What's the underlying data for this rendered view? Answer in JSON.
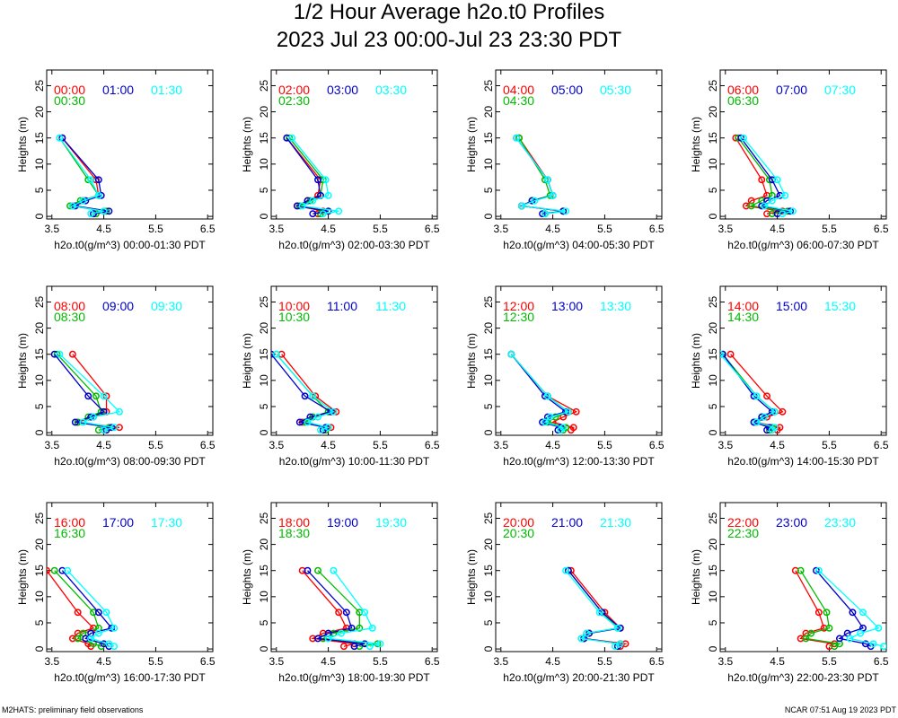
{
  "title": "1/2 Hour Average h2o.t0 Profiles",
  "subtitle": "2023 Jul 23 00:00-Jul 23 23:30 PDT",
  "footer_left": "M2HATS: preliminary field observations",
  "footer_right": "NCAR 07:51 Aug 19 2023 PDT",
  "colors": {
    "a": "#ff0000",
    "b": "#0000cc",
    "c": "#00ffff",
    "d": "#00bb00"
  },
  "chart_data": [
    {
      "type": "line",
      "xlabel": "h2o.t0(g/m^3) 00:00-01:30 PDT",
      "ylabel": "Heights (m)",
      "xlim": [
        3.4,
        6.6
      ],
      "ylim": [
        -0.5,
        28
      ],
      "xticks": [
        "3.5",
        "4.5",
        "5.5",
        "6.5"
      ],
      "yticks": [
        "0",
        "5",
        "10",
        "15",
        "20",
        "25"
      ],
      "heights": [
        0.5,
        1,
        2,
        3,
        4,
        7,
        15
      ],
      "series": [
        {
          "name": "00:00",
          "color": "#ff0000",
          "values": [
            4.3,
            4.5,
            3.9,
            4.1,
            4.4,
            4.35,
            3.7
          ]
        },
        {
          "name": "00:30",
          "color": "#00bb00",
          "values": [
            4.35,
            4.55,
            3.85,
            4.05,
            4.4,
            4.2,
            3.65
          ]
        },
        {
          "name": "01:00",
          "color": "#0000cc",
          "values": [
            4.3,
            4.6,
            3.95,
            4.15,
            4.45,
            4.4,
            3.7
          ]
        },
        {
          "name": "01:30",
          "color": "#00ffff",
          "values": [
            4.25,
            4.5,
            3.9,
            4.1,
            4.4,
            4.25,
            3.65
          ]
        }
      ]
    },
    {
      "type": "line",
      "xlabel": "h2o.t0(g/m^3) 02:00-03:30 PDT",
      "ylabel": "Heights (m)",
      "xlim": [
        3.4,
        6.6
      ],
      "ylim": [
        -0.5,
        28
      ],
      "xticks": [
        "3.5",
        "4.5",
        "5.5",
        "6.5"
      ],
      "yticks": [
        "0",
        "5",
        "10",
        "15",
        "20",
        "25"
      ],
      "heights": [
        0.5,
        1,
        2,
        3,
        4,
        7,
        15
      ],
      "series": [
        {
          "name": "02:00",
          "color": "#ff0000",
          "values": [
            4.3,
            4.4,
            3.9,
            4.1,
            4.3,
            4.35,
            3.7
          ]
        },
        {
          "name": "02:30",
          "color": "#00bb00",
          "values": [
            4.35,
            4.5,
            3.95,
            4.15,
            4.35,
            4.4,
            3.75
          ]
        },
        {
          "name": "03:00",
          "color": "#0000cc",
          "values": [
            4.2,
            4.5,
            3.9,
            4.1,
            4.35,
            4.3,
            3.7
          ]
        },
        {
          "name": "03:30",
          "color": "#00ffff",
          "values": [
            4.4,
            4.7,
            4.0,
            4.2,
            4.5,
            4.45,
            3.8
          ]
        }
      ]
    },
    {
      "type": "line",
      "xlabel": "h2o.t0(g/m^3) 04:00-05:30 PDT",
      "ylabel": "Heights (m)",
      "xlim": [
        3.4,
        6.6
      ],
      "ylim": [
        -0.5,
        28
      ],
      "xticks": [
        "3.5",
        "4.5",
        "5.5",
        "6.5"
      ],
      "yticks": [
        "0",
        "5",
        "10",
        "15",
        "20",
        "25"
      ],
      "heights": [
        0.5,
        1,
        2,
        3,
        4,
        7,
        15
      ],
      "series": [
        {
          "name": "04:00",
          "color": "#ff0000",
          "values": [
            4.35,
            4.7,
            3.9,
            4.1,
            4.5,
            4.4,
            3.85
          ]
        },
        {
          "name": "04:30",
          "color": "#00bb00",
          "values": [
            4.35,
            4.7,
            3.9,
            4.1,
            4.45,
            4.35,
            3.85
          ]
        },
        {
          "name": "05:00",
          "color": "#0000cc",
          "values": [
            4.3,
            4.7,
            3.9,
            4.1,
            4.5,
            4.4,
            3.8
          ]
        },
        {
          "name": "05:30",
          "color": "#00ffff",
          "values": [
            4.35,
            4.75,
            3.9,
            4.15,
            4.5,
            4.4,
            3.8
          ]
        }
      ]
    },
    {
      "type": "line",
      "xlabel": "h2o.t0(g/m^3) 06:00-07:30 PDT",
      "ylabel": "Heights (m)",
      "xlim": [
        3.4,
        6.6
      ],
      "ylim": [
        -0.5,
        28
      ],
      "xticks": [
        "3.5",
        "4.5",
        "5.5",
        "6.5"
      ],
      "yticks": [
        "0",
        "5",
        "10",
        "15",
        "20",
        "25"
      ],
      "heights": [
        0.5,
        1,
        2,
        3,
        4,
        7,
        15
      ],
      "series": [
        {
          "name": "06:00",
          "color": "#ff0000",
          "values": [
            4.3,
            4.6,
            3.9,
            4.0,
            4.3,
            4.2,
            3.7
          ]
        },
        {
          "name": "06:30",
          "color": "#00bb00",
          "values": [
            4.4,
            4.7,
            4.0,
            4.2,
            4.4,
            4.35,
            3.75
          ]
        },
        {
          "name": "07:00",
          "color": "#0000cc",
          "values": [
            4.5,
            4.75,
            4.2,
            4.3,
            4.55,
            4.4,
            3.8
          ]
        },
        {
          "name": "07:30",
          "color": "#00ffff",
          "values": [
            4.6,
            4.8,
            4.25,
            4.4,
            4.65,
            4.5,
            3.85
          ]
        }
      ]
    },
    {
      "type": "line",
      "xlabel": "h2o.t0(g/m^3) 08:00-09:30 PDT",
      "ylabel": "Heights (m)",
      "xlim": [
        3.4,
        6.6
      ],
      "ylim": [
        -0.5,
        28
      ],
      "xticks": [
        "3.5",
        "4.5",
        "5.5",
        "6.5"
      ],
      "yticks": [
        "0",
        "5",
        "10",
        "15",
        "20",
        "25"
      ],
      "heights": [
        0.5,
        1,
        2,
        3,
        4,
        7,
        15
      ],
      "series": [
        {
          "name": "08:00",
          "color": "#ff0000",
          "values": [
            4.5,
            4.8,
            4.0,
            4.3,
            4.55,
            4.55,
            3.9
          ]
        },
        {
          "name": "08:30",
          "color": "#00bb00",
          "values": [
            4.4,
            4.6,
            4.0,
            4.2,
            4.45,
            4.35,
            3.6
          ]
        },
        {
          "name": "09:00",
          "color": "#0000cc",
          "values": [
            4.55,
            4.65,
            3.95,
            4.25,
            4.5,
            4.2,
            3.55
          ]
        },
        {
          "name": "09:30",
          "color": "#00ffff",
          "values": [
            4.5,
            4.7,
            4.1,
            4.3,
            4.8,
            4.5,
            3.65
          ]
        }
      ]
    },
    {
      "type": "line",
      "xlabel": "h2o.t0(g/m^3) 10:00-11:30 PDT",
      "ylabel": "Heights (m)",
      "xlim": [
        3.4,
        6.6
      ],
      "ylim": [
        -0.5,
        28
      ],
      "xticks": [
        "3.5",
        "4.5",
        "5.5",
        "6.5"
      ],
      "yticks": [
        "0",
        "5",
        "10",
        "15",
        "20",
        "25"
      ],
      "heights": [
        0.5,
        1,
        2,
        3,
        4,
        7,
        15
      ],
      "series": [
        {
          "name": "10:00",
          "color": "#ff0000",
          "values": [
            4.4,
            4.55,
            4.0,
            4.2,
            4.65,
            4.25,
            3.6
          ]
        },
        {
          "name": "10:30",
          "color": "#00bb00",
          "values": [
            4.45,
            4.5,
            4.05,
            4.2,
            4.5,
            4.2,
            3.5
          ]
        },
        {
          "name": "11:00",
          "color": "#0000cc",
          "values": [
            4.4,
            4.45,
            3.95,
            4.15,
            4.55,
            4.05,
            3.4
          ]
        },
        {
          "name": "11:30",
          "color": "#00ffff",
          "values": [
            4.35,
            4.5,
            4.1,
            4.3,
            4.6,
            4.2,
            3.5
          ]
        }
      ]
    },
    {
      "type": "line",
      "xlabel": "h2o.t0(g/m^3) 12:00-13:30 PDT",
      "ylabel": "Heights (m)",
      "xlim": [
        3.4,
        6.6
      ],
      "ylim": [
        -0.5,
        28
      ],
      "xticks": [
        "3.5",
        "4.5",
        "5.5",
        "6.5"
      ],
      "yticks": [
        "0",
        "5",
        "10",
        "15",
        "20",
        "25"
      ],
      "heights": [
        0.5,
        1,
        2,
        3,
        4,
        7,
        15
      ],
      "series": [
        {
          "name": "12:00",
          "color": "#ff0000",
          "values": [
            4.85,
            4.9,
            4.5,
            4.7,
            4.95,
            4.4,
            3.7
          ]
        },
        {
          "name": "12:30",
          "color": "#00bb00",
          "values": [
            4.7,
            4.75,
            4.4,
            4.55,
            4.8,
            4.4,
            3.7
          ]
        },
        {
          "name": "13:00",
          "color": "#0000cc",
          "values": [
            4.6,
            4.65,
            4.3,
            4.4,
            4.75,
            4.35,
            3.7
          ]
        },
        {
          "name": "13:30",
          "color": "#00ffff",
          "values": [
            4.65,
            4.7,
            4.35,
            4.45,
            4.8,
            4.4,
            3.7
          ]
        }
      ]
    },
    {
      "type": "line",
      "xlabel": "h2o.t0(g/m^3) 14:00-15:30 PDT",
      "ylabel": "Heights (m)",
      "xlim": [
        3.4,
        6.6
      ],
      "ylim": [
        -0.5,
        28
      ],
      "xticks": [
        "3.5",
        "4.5",
        "5.5",
        "6.5"
      ],
      "yticks": [
        "0",
        "5",
        "10",
        "15",
        "20",
        "25"
      ],
      "heights": [
        0.5,
        1,
        2,
        3,
        4,
        7,
        15
      ],
      "series": [
        {
          "name": "14:00",
          "color": "#ff0000",
          "values": [
            4.5,
            4.55,
            4.1,
            4.3,
            4.6,
            4.3,
            3.6
          ]
        },
        {
          "name": "14:30",
          "color": "#00bb00",
          "values": [
            4.35,
            4.4,
            4.05,
            4.2,
            4.45,
            4.1,
            3.45
          ]
        },
        {
          "name": "15:00",
          "color": "#0000cc",
          "values": [
            4.3,
            4.35,
            4.05,
            4.2,
            4.4,
            4.05,
            3.45
          ]
        },
        {
          "name": "15:30",
          "color": "#00ffff",
          "values": [
            4.4,
            4.45,
            4.1,
            4.25,
            4.45,
            4.1,
            3.4
          ]
        }
      ]
    },
    {
      "type": "line",
      "xlabel": "h2o.t0(g/m^3) 16:00-17:30 PDT",
      "ylabel": "Heights (m)",
      "xlim": [
        3.4,
        6.6
      ],
      "ylim": [
        -0.5,
        28
      ],
      "xticks": [
        "3.5",
        "4.5",
        "5.5",
        "6.5"
      ],
      "yticks": [
        "0",
        "5",
        "10",
        "15",
        "20",
        "25"
      ],
      "heights": [
        0.5,
        1,
        2,
        3,
        4,
        7,
        15
      ],
      "series": [
        {
          "name": "16:00",
          "color": "#ff0000",
          "values": [
            4.25,
            4.2,
            3.9,
            4.0,
            4.3,
            4.0,
            3.4
          ]
        },
        {
          "name": "16:30",
          "color": "#00bb00",
          "values": [
            4.45,
            4.3,
            4.0,
            4.1,
            4.4,
            4.3,
            3.55
          ]
        },
        {
          "name": "17:00",
          "color": "#0000cc",
          "values": [
            4.6,
            4.5,
            4.15,
            4.25,
            4.65,
            4.4,
            3.7
          ]
        },
        {
          "name": "17:30",
          "color": "#00ffff",
          "values": [
            4.7,
            4.6,
            4.25,
            4.4,
            4.7,
            4.55,
            3.8
          ]
        }
      ]
    },
    {
      "type": "line",
      "xlabel": "h2o.t0(g/m^3) 18:00-19:30 PDT",
      "ylabel": "Heights (m)",
      "xlim": [
        3.4,
        6.6
      ],
      "ylim": [
        -0.5,
        28
      ],
      "xticks": [
        "3.5",
        "4.5",
        "5.5",
        "6.5"
      ],
      "yticks": [
        "0",
        "5",
        "10",
        "15",
        "20",
        "25"
      ],
      "heights": [
        0.5,
        1,
        2,
        3,
        4,
        7,
        15
      ],
      "series": [
        {
          "name": "18:00",
          "color": "#ff0000",
          "values": [
            4.8,
            5.0,
            4.2,
            4.4,
            4.85,
            4.7,
            4.0
          ]
        },
        {
          "name": "18:30",
          "color": "#00bb00",
          "values": [
            5.1,
            5.45,
            4.4,
            4.6,
            5.1,
            5.1,
            4.3
          ]
        },
        {
          "name": "19:00",
          "color": "#0000cc",
          "values": [
            5.0,
            5.2,
            4.3,
            4.5,
            4.95,
            4.85,
            4.1
          ]
        },
        {
          "name": "19:30",
          "color": "#00ffff",
          "values": [
            5.3,
            5.5,
            4.5,
            4.75,
            5.35,
            5.2,
            4.6
          ]
        }
      ]
    },
    {
      "type": "line",
      "xlabel": "h2o.t0(g/m^3) 20:00-21:30 PDT",
      "ylabel": "Heights (m)",
      "xlim": [
        3.4,
        6.6
      ],
      "ylim": [
        -0.5,
        28
      ],
      "xticks": [
        "3.5",
        "4.5",
        "5.5",
        "6.5"
      ],
      "yticks": [
        "0",
        "5",
        "10",
        "15",
        "20",
        "25"
      ],
      "heights": [
        0.5,
        1,
        2,
        3,
        4,
        7,
        15
      ],
      "series": [
        {
          "name": "20:00",
          "color": "#ff0000",
          "values": [
            5.8,
            5.9,
            5.1,
            5.2,
            5.8,
            5.5,
            4.85
          ]
        },
        {
          "name": "20:30",
          "color": "#00bb00",
          "values": [
            5.75,
            5.8,
            5.05,
            5.15,
            5.75,
            5.45,
            4.8
          ]
        },
        {
          "name": "21:00",
          "color": "#0000cc",
          "values": [
            5.75,
            5.8,
            5.1,
            5.2,
            5.8,
            5.45,
            4.8
          ]
        },
        {
          "name": "21:30",
          "color": "#00ffff",
          "values": [
            5.7,
            5.8,
            5.05,
            5.15,
            5.75,
            5.4,
            4.75
          ]
        }
      ]
    },
    {
      "type": "line",
      "xlabel": "h2o.t0(g/m^3) 22:00-23:30 PDT",
      "ylabel": "Heights (m)",
      "xlim": [
        3.4,
        6.6
      ],
      "ylim": [
        -0.5,
        28
      ],
      "xticks": [
        "3.5",
        "4.5",
        "5.5",
        "6.5"
      ],
      "yticks": [
        "0",
        "5",
        "10",
        "15",
        "20",
        "25"
      ],
      "heights": [
        0.5,
        1,
        2,
        3,
        4,
        7,
        15
      ],
      "series": [
        {
          "name": "22:00",
          "color": "#ff0000",
          "values": [
            5.5,
            5.6,
            4.95,
            5.05,
            5.4,
            5.3,
            4.85
          ]
        },
        {
          "name": "22:30",
          "color": "#00bb00",
          "values": [
            5.6,
            5.7,
            5.05,
            5.15,
            5.5,
            5.45,
            4.95
          ]
        },
        {
          "name": "23:00",
          "color": "#0000cc",
          "values": [
            6.3,
            6.2,
            5.7,
            5.85,
            6.15,
            5.95,
            5.25
          ]
        },
        {
          "name": "23:30",
          "color": "#00ffff",
          "values": [
            6.55,
            6.35,
            5.9,
            6.1,
            6.45,
            6.15,
            5.3
          ]
        }
      ]
    }
  ]
}
